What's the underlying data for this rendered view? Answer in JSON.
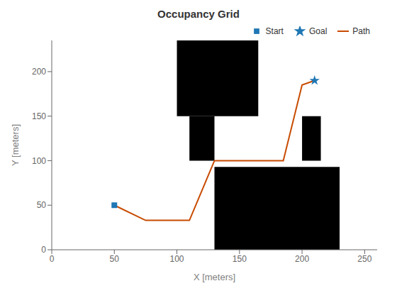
{
  "chart_data": {
    "type": "scatter",
    "title": "Occupancy Grid",
    "x_label": "X [meters]",
    "y_label": "Y [meters]",
    "xlim": [
      0,
      260
    ],
    "ylim": [
      0,
      235
    ],
    "xticks": [
      0,
      50,
      100,
      150,
      200,
      250
    ],
    "yticks": [
      0,
      50,
      100,
      150,
      200
    ],
    "grid": false,
    "legend": "upper right",
    "obstacles": [
      {
        "x": 100,
        "y": 150,
        "width": 65,
        "height": 85,
        "color": "#000000"
      },
      {
        "x": 110,
        "y": 100,
        "width": 20,
        "height": 50,
        "color": "#000000"
      },
      {
        "x": 130,
        "y": 0,
        "width": 100,
        "height": 93,
        "color": "#000000"
      },
      {
        "x": 200,
        "y": 100,
        "width": 15,
        "height": 50,
        "color": "#000000"
      }
    ],
    "series": [
      {
        "name": "Start",
        "type": "scatter",
        "marker": "square",
        "color": "#1F77B4",
        "x": [
          50
        ],
        "values": [
          50
        ]
      },
      {
        "name": "Goal",
        "type": "scatter",
        "marker": "star",
        "color": "#1F77B4",
        "x": [
          210
        ],
        "values": [
          190
        ]
      },
      {
        "name": "Path",
        "type": "line",
        "color": "#C84B00",
        "x": [
          50,
          75,
          110,
          130,
          185,
          200,
          210
        ],
        "values": [
          50,
          33,
          33,
          100,
          100,
          185,
          190
        ]
      }
    ]
  }
}
